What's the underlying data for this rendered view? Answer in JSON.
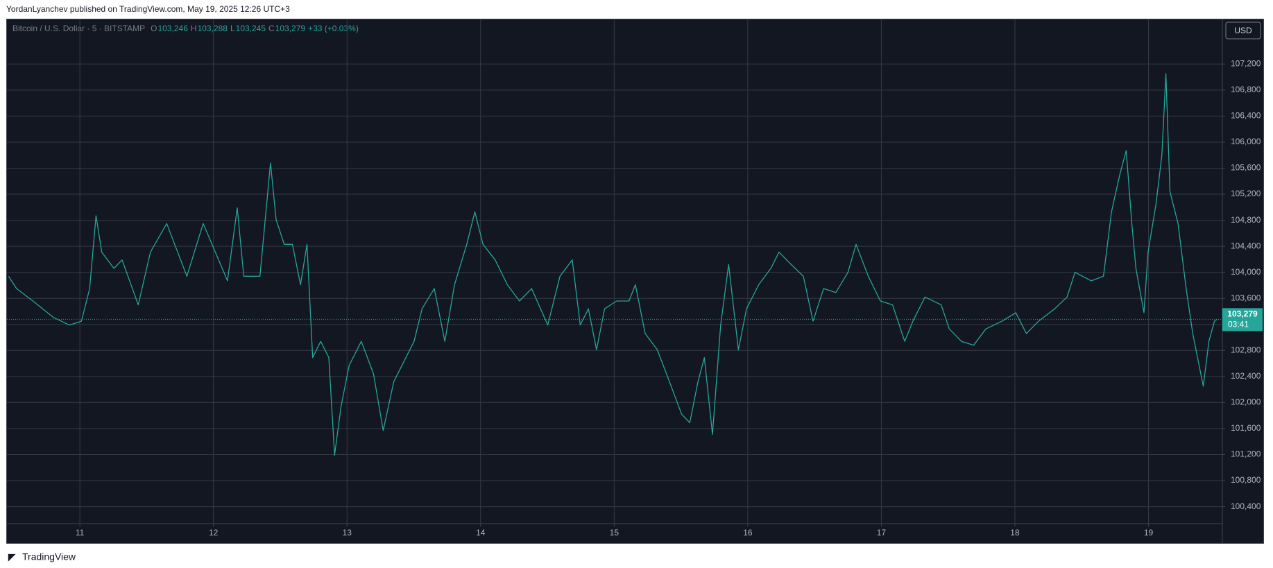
{
  "header": "YordanLyanchev published on TradingView.com, May 19, 2025 12:26 UTC+3",
  "footer": "TradingView",
  "chart_data": {
    "type": "line",
    "symbol": "Bitcoin / U.S. Dollar · 5 · BITSTAMP",
    "ohlc": [
      [
        "O",
        "103,246"
      ],
      [
        "H",
        "103,288"
      ],
      [
        "L",
        "103,245"
      ],
      [
        "C",
        "103,279"
      ]
    ],
    "change": "+33 (+0.03%)",
    "currency": "USD",
    "last_price": {
      "value": 103279,
      "label": "103,279"
    },
    "countdown": "03:41",
    "color": "#26a69a",
    "grid": true,
    "x": [
      10.466,
      10.526,
      10.648,
      10.8,
      10.921,
      11.012,
      11.073,
      11.121,
      11.164,
      11.255,
      11.316,
      11.437,
      11.528,
      11.65,
      11.71,
      11.801,
      11.923,
      12.014,
      12.105,
      12.178,
      12.227,
      12.348,
      12.427,
      12.469,
      12.53,
      12.591,
      12.652,
      12.7,
      12.743,
      12.803,
      12.864,
      12.907,
      12.955,
      13.016,
      13.107,
      13.198,
      13.271,
      13.35,
      13.441,
      13.502,
      13.562,
      13.653,
      13.732,
      13.805,
      13.896,
      13.957,
      14.018,
      14.109,
      14.2,
      14.291,
      14.382,
      14.503,
      14.594,
      14.686,
      14.746,
      14.807,
      14.868,
      14.928,
      15.019,
      15.111,
      15.159,
      15.232,
      15.323,
      15.414,
      15.505,
      15.566,
      15.627,
      15.675,
      15.736,
      15.797,
      15.857,
      15.93,
      15.991,
      16.082,
      16.173,
      16.234,
      16.325,
      16.416,
      16.489,
      16.568,
      16.659,
      16.75,
      16.811,
      16.902,
      16.993,
      17.084,
      17.175,
      17.236,
      17.327,
      17.448,
      17.509,
      17.6,
      17.691,
      17.782,
      17.904,
      18.007,
      18.086,
      18.177,
      18.298,
      18.39,
      18.45,
      18.572,
      18.663,
      18.723,
      18.784,
      18.833,
      18.875,
      18.906,
      18.966,
      18.997,
      19.057,
      19.1,
      19.13,
      19.161,
      19.221,
      19.282,
      19.331,
      19.379,
      19.41,
      19.452,
      19.494,
      19.513
    ],
    "values": [
      103940,
      103750,
      103560,
      103310,
      103190,
      103250,
      103750,
      104870,
      104310,
      104060,
      104190,
      103500,
      104310,
      104750,
      104430,
      103940,
      104750,
      104310,
      103870,
      104990,
      103940,
      103940,
      105680,
      104810,
      104430,
      104430,
      103810,
      104430,
      102690,
      102940,
      102690,
      101190,
      101940,
      102570,
      102940,
      102440,
      101570,
      102320,
      102690,
      102940,
      103440,
      103750,
      102940,
      103810,
      104430,
      104930,
      104430,
      104190,
      103810,
      103560,
      103750,
      103190,
      103940,
      104190,
      103190,
      103440,
      102810,
      103440,
      103560,
      103560,
      103810,
      103060,
      102810,
      102320,
      101820,
      101690,
      102320,
      102690,
      101510,
      103190,
      104120,
      102810,
      103440,
      103810,
      104060,
      104310,
      104120,
      103940,
      103250,
      103750,
      103690,
      104000,
      104430,
      103940,
      103560,
      103500,
      102940,
      103250,
      103620,
      103500,
      103130,
      102940,
      102880,
      103130,
      103250,
      103380,
      103060,
      103250,
      103440,
      103620,
      104000,
      103870,
      103940,
      104930,
      105490,
      105870,
      104750,
      104060,
      103380,
      104310,
      105060,
      105800,
      107050,
      105240,
      104750,
      103750,
      103060,
      102570,
      102250,
      102940,
      103250,
      103279
    ],
    "xlim": [
      10.454,
      19.553
    ],
    "ylim": [
      100140,
      107885
    ],
    "xticks": [
      11,
      12,
      13,
      14,
      15,
      16,
      17,
      18,
      19
    ],
    "yticks": [
      {
        "value": 100400,
        "label": "100,400"
      },
      {
        "value": 100800,
        "label": "100,800"
      },
      {
        "value": 101200,
        "label": "101,200"
      },
      {
        "value": 101600,
        "label": "101,600"
      },
      {
        "value": 102000,
        "label": "102,000"
      },
      {
        "value": 102400,
        "label": "102,400"
      },
      {
        "value": 102800,
        "label": "102,800"
      },
      {
        "value": 103200,
        "label": "103,200"
      },
      {
        "value": 103600,
        "label": "103,600"
      },
      {
        "value": 104000,
        "label": "104,000"
      },
      {
        "value": 104400,
        "label": "104,400"
      },
      {
        "value": 104800,
        "label": "104,800"
      },
      {
        "value": 105200,
        "label": "105,200"
      },
      {
        "value": 105600,
        "label": "105,600"
      },
      {
        "value": 106000,
        "label": "106,000"
      },
      {
        "value": 106400,
        "label": "106,400"
      },
      {
        "value": 106800,
        "label": "106,800"
      },
      {
        "value": 107200,
        "label": "107,200"
      }
    ]
  }
}
